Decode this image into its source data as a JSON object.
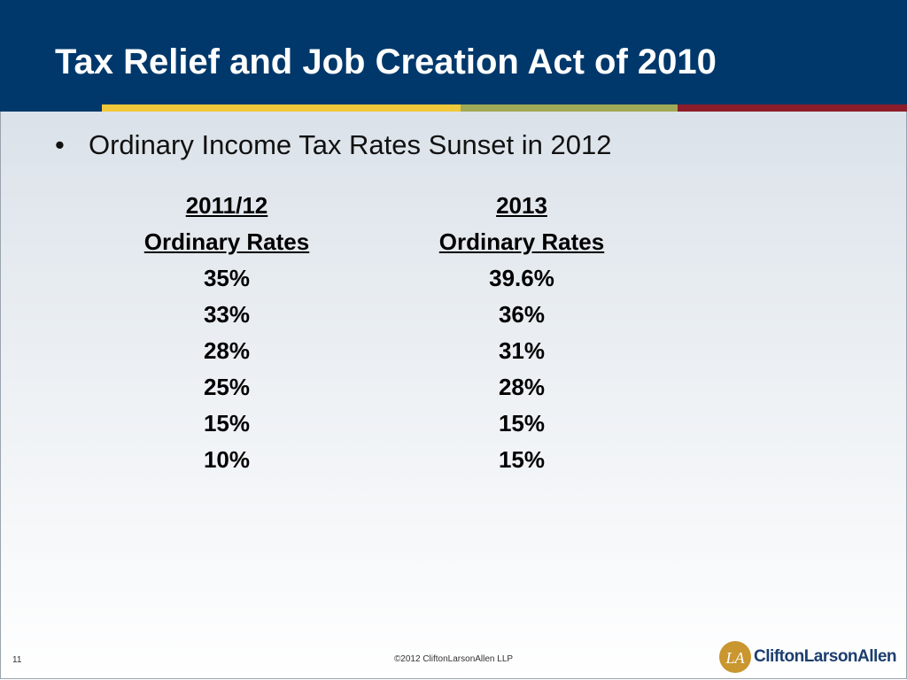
{
  "slide": {
    "title": "Tax Relief and Job Creation Act of 2010",
    "bullet": "Ordinary Income Tax Rates Sunset in 2012",
    "bullet_glyph": "•"
  },
  "columns": [
    {
      "header_year": "2011/12",
      "header_label": "Ordinary Rates",
      "rates": [
        "35%",
        "33%",
        "28%",
        "25%",
        "15%",
        "10%"
      ]
    },
    {
      "header_year": "2013",
      "header_label": "Ordinary Rates",
      "rates": [
        "39.6%",
        "36%",
        "31%",
        "28%",
        "15%",
        "15%"
      ]
    }
  ],
  "footer": {
    "page_number": "11",
    "copyright": "©2012 CliftonLarsonAllen LLP",
    "logo_text": "CliftonLarsonAllen",
    "logo_initials": "LA"
  },
  "colors": {
    "header_bg": "#00386b",
    "stripe_yellow": "#f0c83a",
    "stripe_green": "#a0a957",
    "stripe_red": "#8c1d2b",
    "logo_gold": "#c9962f",
    "logo_navy": "#1c3e6e"
  }
}
